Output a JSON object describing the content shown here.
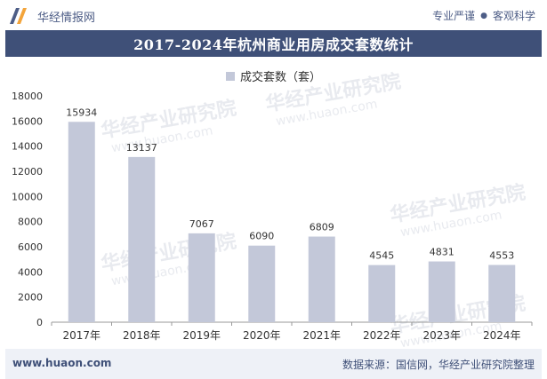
{
  "header": {
    "brand": "华经情报网",
    "tagline_left": "专业严谨",
    "tagline_sep": "●",
    "tagline_right": "客观科学"
  },
  "title": "2017-2024年杭州商业用房成交套数统计",
  "footer": {
    "url": "www.huaon.com",
    "source": "数据来源：国信网，华经产业研究院整理"
  },
  "colors": {
    "bar": "#c3c8d9",
    "title_bg": "#3f5078",
    "accent": "#4d5d86"
  },
  "watermark": {
    "text": "华经产业研究院",
    "url": "www.huaon.com"
  },
  "chart_data": {
    "type": "bar",
    "title": "2017-2024年杭州商业用房成交套数统计",
    "categories": [
      "2017年",
      "2018年",
      "2019年",
      "2020年",
      "2021年",
      "2022年",
      "2023年",
      "2024年"
    ],
    "series": [
      {
        "name": "成交套数（套）",
        "values": [
          15934,
          13137,
          7067,
          6090,
          6809,
          4545,
          4831,
          4553
        ]
      }
    ],
    "ylim": [
      0,
      18000
    ],
    "yticks": [
      0,
      2000,
      4000,
      6000,
      8000,
      10000,
      12000,
      14000,
      16000,
      18000
    ],
    "xlabel": "",
    "ylabel": "",
    "legend": "top-center",
    "grid": false
  }
}
